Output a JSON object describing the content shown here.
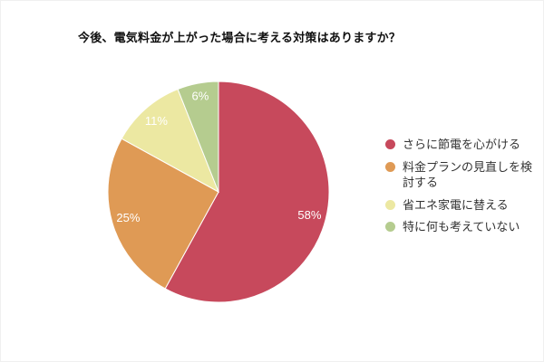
{
  "chart_data": {
    "type": "pie",
    "title": "今後、電気料金が上がった場合に考える対策はありますか？",
    "direction": "clockwise",
    "start_angle_deg": 0,
    "legend_position": "right",
    "percent_label_color": "#ffffff",
    "slices": [
      {
        "label": "さらに節電を心がける",
        "value": 58,
        "pct_label": "58%",
        "color": "#c7495c"
      },
      {
        "label": "料金プランの見直しを検討する",
        "value": 25,
        "pct_label": "25%",
        "color": "#df9a55"
      },
      {
        "label": "省エネ家電に替える",
        "value": 11,
        "pct_label": "11%",
        "color": "#ece8a2"
      },
      {
        "label": "特に何も考えていない",
        "value": 6,
        "pct_label": "6%",
        "color": "#b5cc8f"
      }
    ]
  }
}
